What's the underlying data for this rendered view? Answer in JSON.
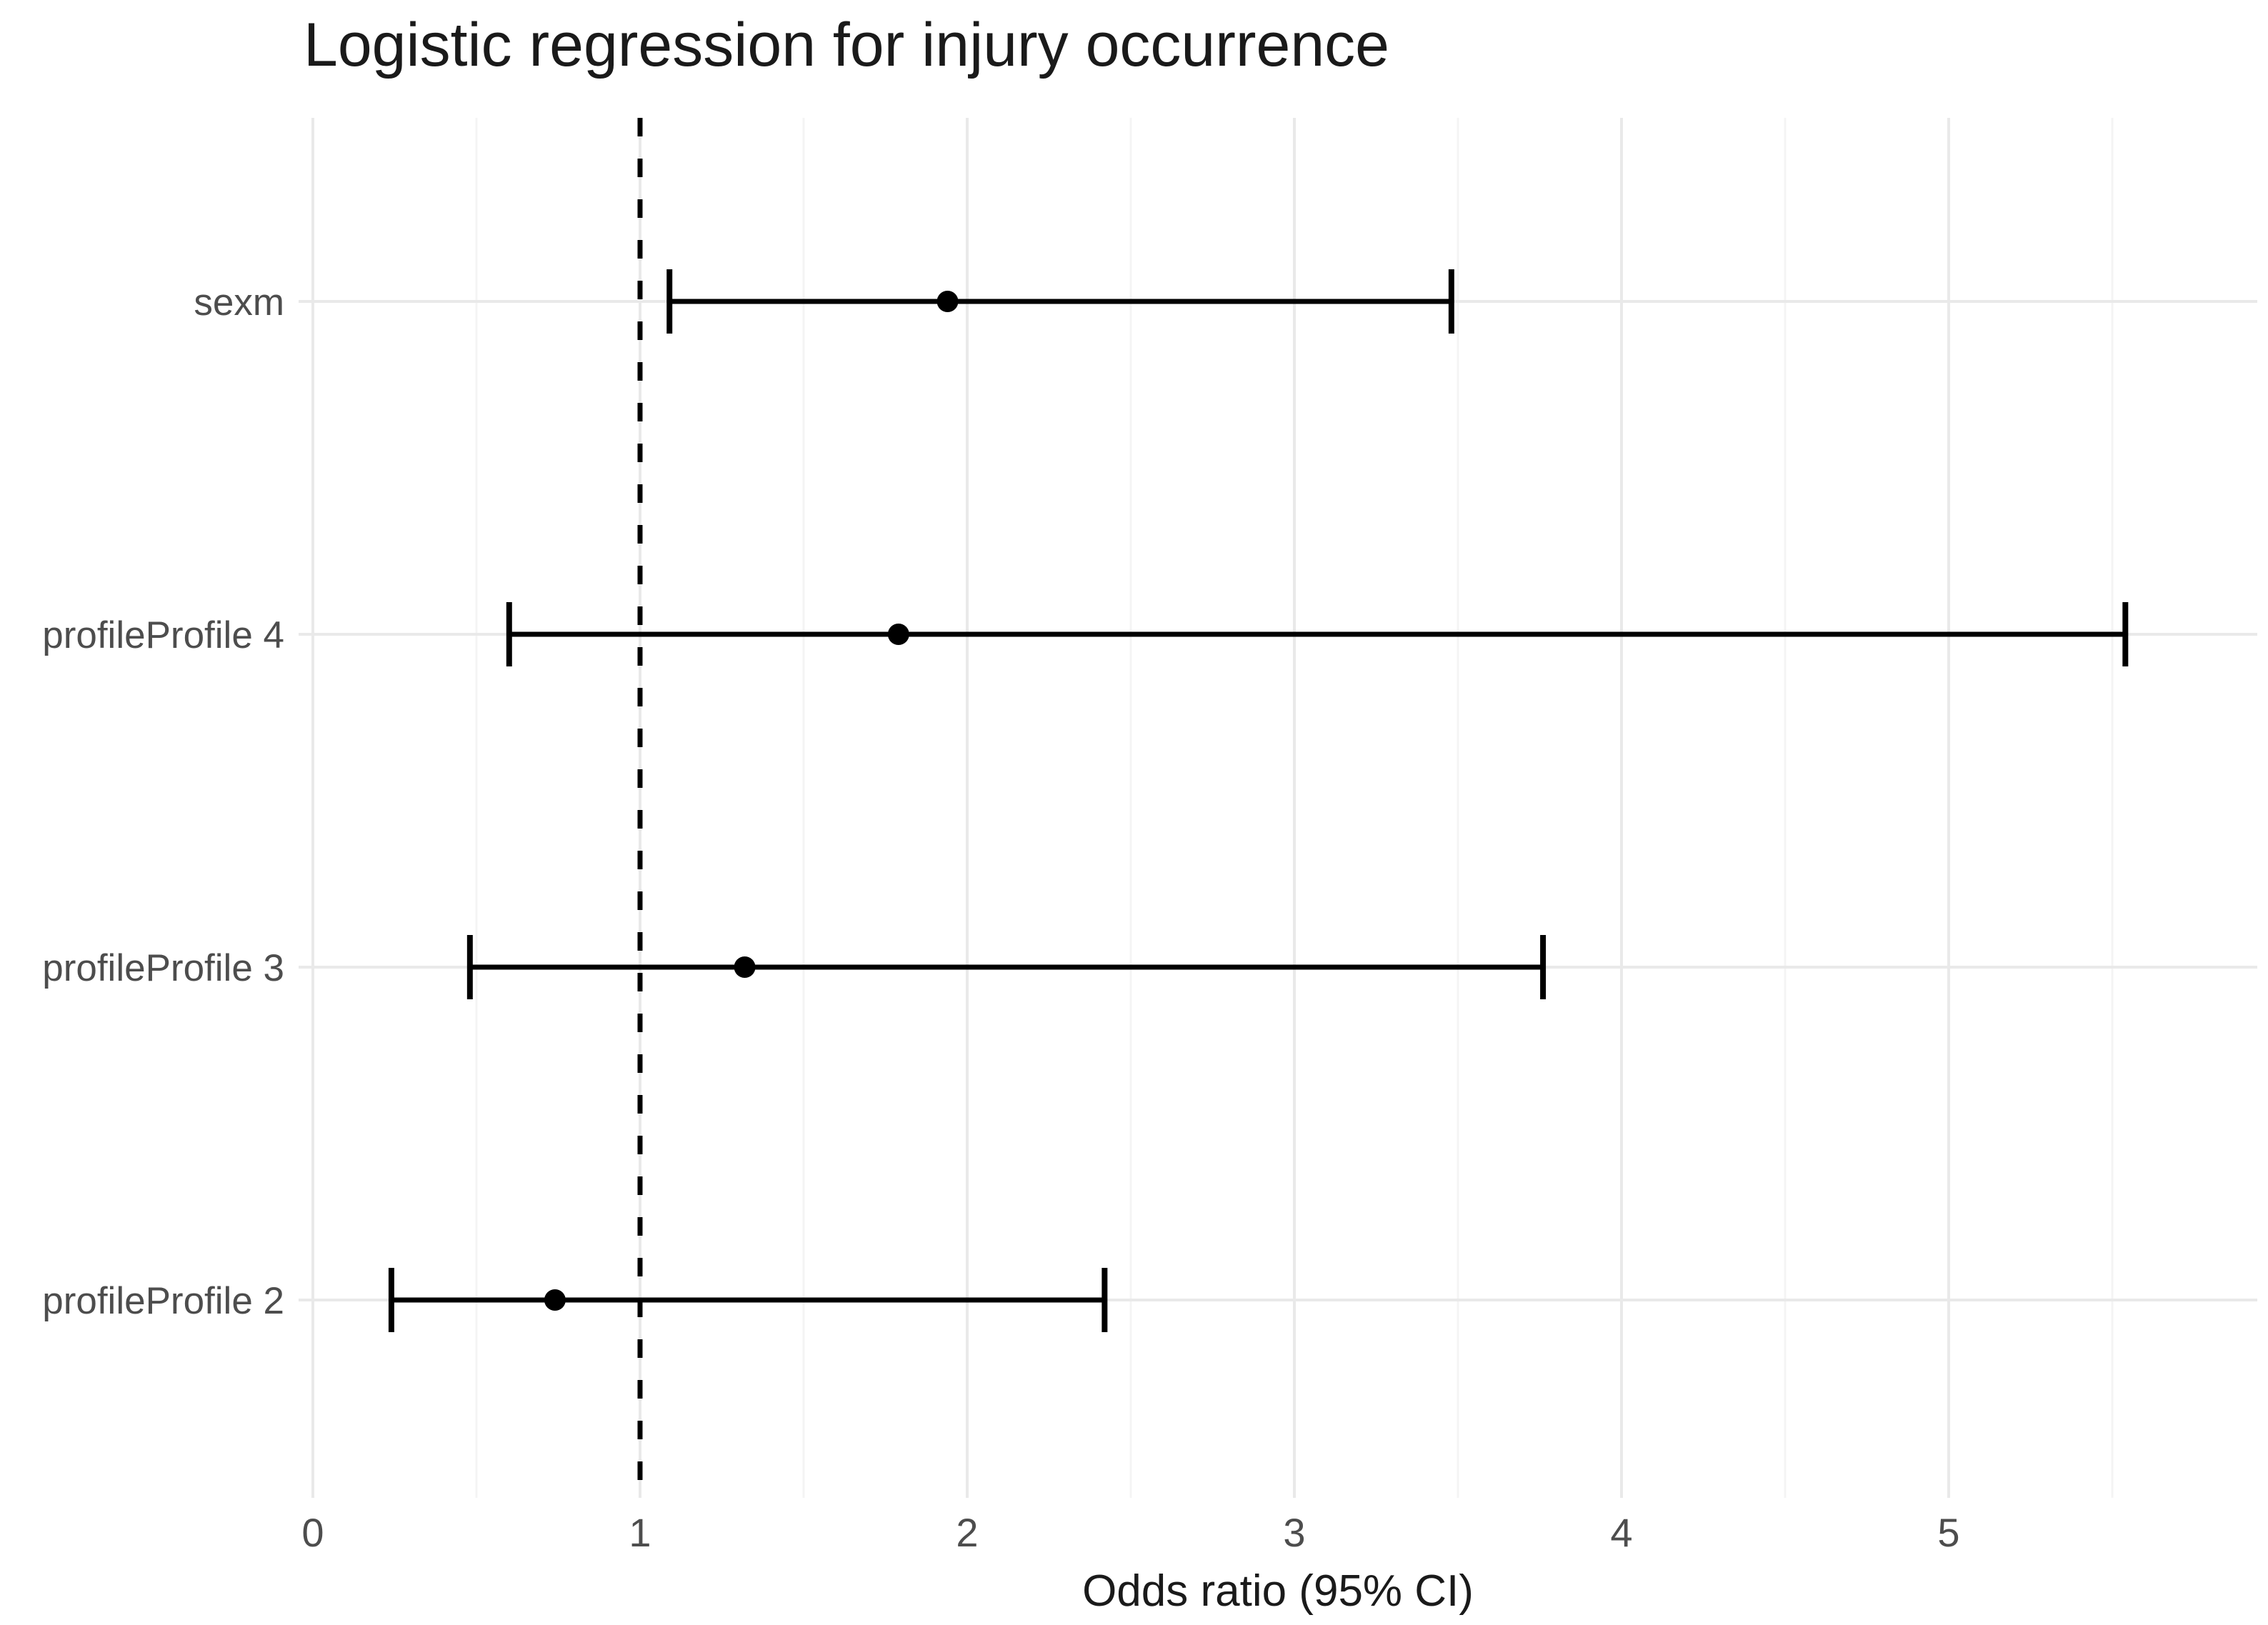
{
  "chart_data": {
    "type": "scatter",
    "subtype": "forest-plot",
    "title": "Logistic regression for injury occurrence",
    "xlabel": "Odds ratio (95% CI)",
    "ylabel": "",
    "categories": [
      "sexm",
      "profileProfile 4",
      "profileProfile 3",
      "profileProfile 2"
    ],
    "rows": [
      {
        "label": "sexm",
        "or": 1.94,
        "ci_low": 1.09,
        "ci_high": 3.48
      },
      {
        "label": "profileProfile 4",
        "or": 1.79,
        "ci_low": 0.6,
        "ci_high": 5.54
      },
      {
        "label": "profileProfile 3",
        "or": 1.32,
        "ci_low": 0.48,
        "ci_high": 3.76
      },
      {
        "label": "profileProfile 2",
        "or": 0.74,
        "ci_low": 0.24,
        "ci_high": 2.42
      }
    ],
    "x_ticks": [
      0,
      1,
      2,
      3,
      4,
      5
    ],
    "x_minor_ticks": [
      0.5,
      1.5,
      2.5,
      3.5,
      4.5,
      5.5
    ],
    "xlim": [
      -0.04,
      5.95
    ],
    "reference_line_x": 1,
    "grid": "on",
    "legend": "none",
    "colors": {
      "background": "#ffffff",
      "point": "#000000",
      "ci_line": "#000000",
      "reference_line": "#000000",
      "grid_major": "#e9e9e9",
      "grid_minor": "#f4f4f4",
      "axis_text": "#4d4d4d",
      "title_text": "#1a1a1a"
    }
  }
}
